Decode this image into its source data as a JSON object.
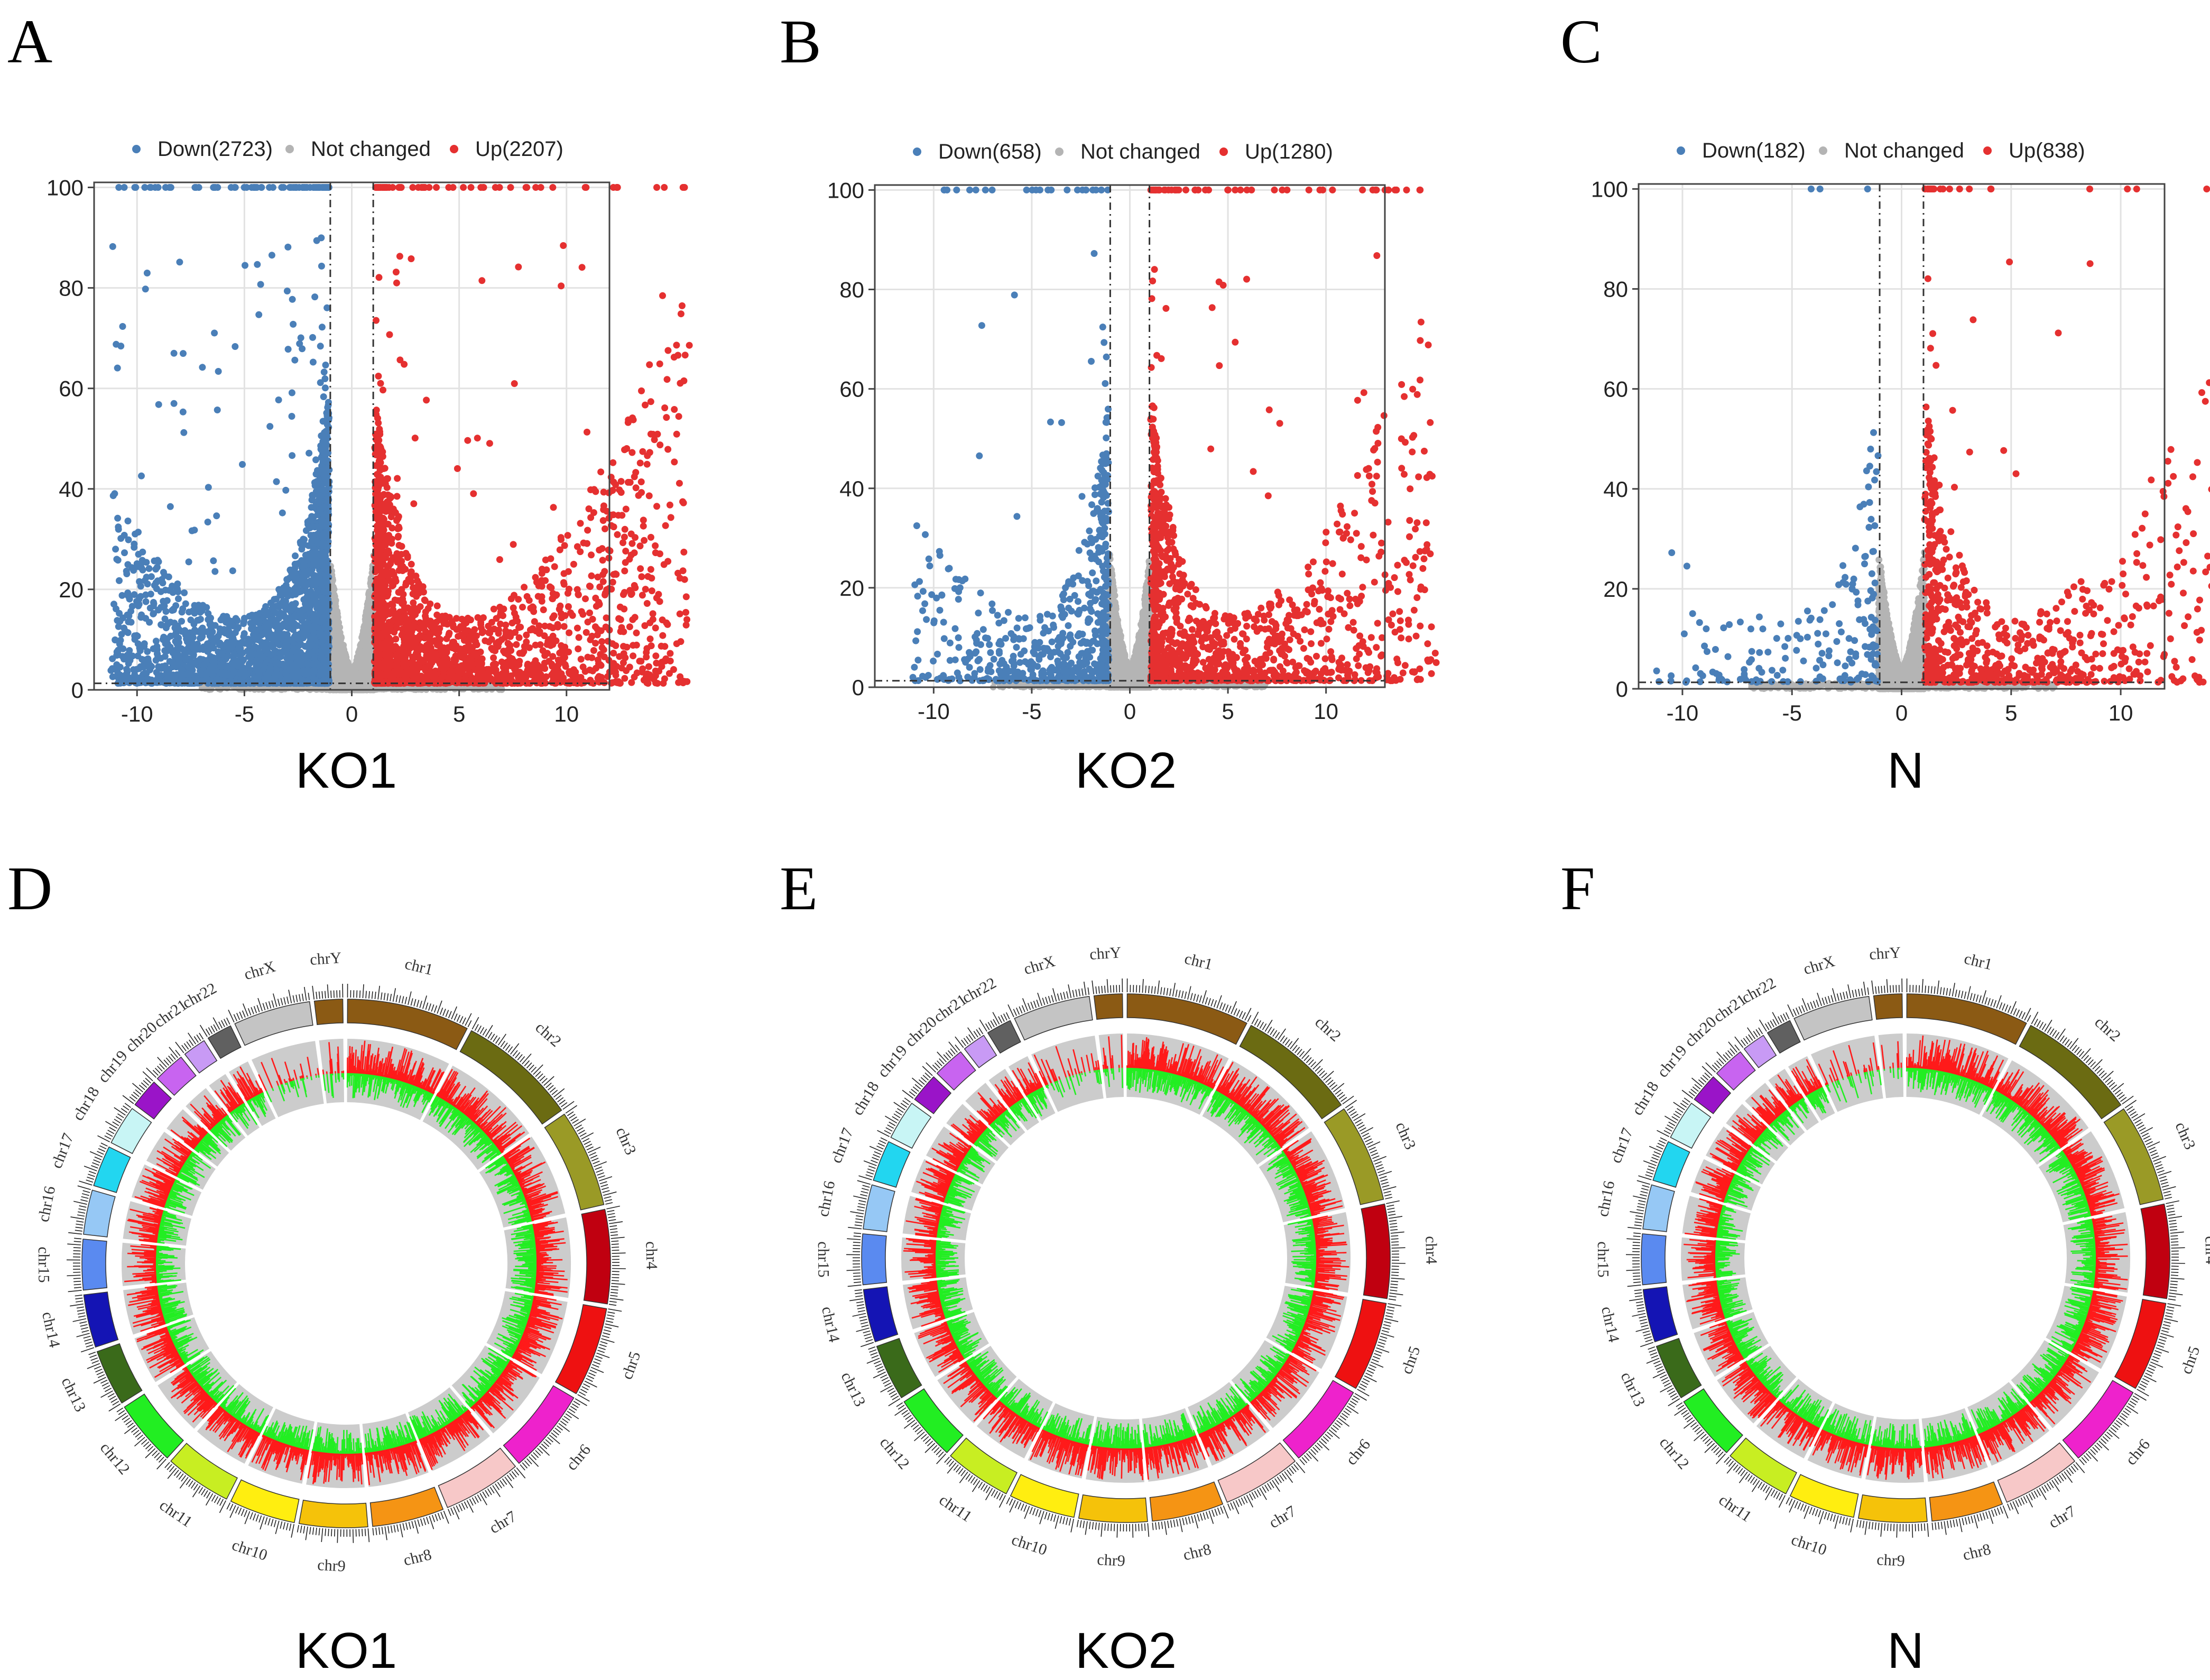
{
  "figure": {
    "panels": [
      "A",
      "B",
      "C",
      "D",
      "E",
      "F"
    ]
  },
  "chart_data": [
    {
      "panel": "A",
      "type": "scatter",
      "subtitle": "KO1",
      "legend": [
        {
          "label": "Down(2723)",
          "color": "#4a7fb8"
        },
        {
          "label": "Not changed",
          "color": "#b4b4b4"
        },
        {
          "label": "Up(2207)",
          "color": "#e53030"
        }
      ],
      "xticks": [
        -10,
        -5,
        0,
        5,
        10
      ],
      "yticks": [
        0,
        20,
        40,
        60,
        80,
        100
      ],
      "xlim": [
        -12,
        12
      ],
      "ylim": [
        0,
        101
      ],
      "fc": 1,
      "ref_y": 1.3,
      "seed": 11,
      "down": 2723,
      "up": 2207,
      "grey": 2200
    },
    {
      "panel": "B",
      "type": "scatter",
      "subtitle": "KO2",
      "legend": [
        {
          "label": "Down(658)",
          "color": "#4a7fb8"
        },
        {
          "label": "Not changed",
          "color": "#b4b4b4"
        },
        {
          "label": "Up(1280)",
          "color": "#e53030"
        }
      ],
      "xticks": [
        -10,
        -5,
        0,
        5,
        10
      ],
      "yticks": [
        0,
        20,
        40,
        60,
        80,
        100
      ],
      "xlim": [
        -13,
        13
      ],
      "ylim": [
        0,
        101
      ],
      "fc": 1,
      "ref_y": 1.3,
      "seed": 23,
      "down": 658,
      "up": 1280,
      "grey": 2200
    },
    {
      "panel": "C",
      "type": "scatter",
      "subtitle": "N",
      "legend": [
        {
          "label": "Down(182)",
          "color": "#4a7fb8"
        },
        {
          "label": "Not changed",
          "color": "#b4b4b4"
        },
        {
          "label": "Up(838)",
          "color": "#e53030"
        }
      ],
      "xticks": [
        -10,
        -5,
        0,
        5,
        10
      ],
      "yticks": [
        0,
        20,
        40,
        60,
        80,
        100
      ],
      "xlim": [
        -12,
        12
      ],
      "ylim": [
        0,
        101
      ],
      "fc": 1,
      "ref_y": 1.3,
      "seed": 37,
      "down": 182,
      "up": 838,
      "grey": 2200
    },
    {
      "panel": "D",
      "type": "circos",
      "subtitle": "KO1",
      "seed": 5,
      "track_colors": {
        "up": "#ff1a1a",
        "down": "#22ee22",
        "background": "#cccccc"
      }
    },
    {
      "panel": "E",
      "type": "circos",
      "subtitle": "KO2",
      "seed": 9,
      "track_colors": {
        "up": "#ff1a1a",
        "down": "#22ee22",
        "background": "#cccccc"
      }
    },
    {
      "panel": "F",
      "type": "circos",
      "subtitle": "N",
      "seed": 13,
      "track_colors": {
        "up": "#ff1a1a",
        "down": "#22ee22",
        "background": "#cccccc"
      }
    }
  ],
  "chromosomes": [
    {
      "name": "chr1",
      "length": 248,
      "color": "#8b5a14"
    },
    {
      "name": "chr2",
      "length": 242,
      "color": "#6b6b12"
    },
    {
      "name": "chr3",
      "length": 198,
      "color": "#9a9a26"
    },
    {
      "name": "chr4",
      "length": 190,
      "color": "#c00010"
    },
    {
      "name": "chr5",
      "length": 181,
      "color": "#ee1111"
    },
    {
      "name": "chr6",
      "length": 171,
      "color": "#ee22cc"
    },
    {
      "name": "chr7",
      "length": 159,
      "color": "#f7c8c8"
    },
    {
      "name": "chr8",
      "length": 145,
      "color": "#f59414"
    },
    {
      "name": "chr9",
      "length": 138,
      "color": "#f5c20a"
    },
    {
      "name": "chr10",
      "length": 134,
      "color": "#ffee10"
    },
    {
      "name": "chr11",
      "length": 135,
      "color": "#c8ee22"
    },
    {
      "name": "chr12",
      "length": 133,
      "color": "#22ee22"
    },
    {
      "name": "chr13",
      "length": 114,
      "color": "#3a6a1a"
    },
    {
      "name": "chr14",
      "length": 107,
      "color": "#1414b4"
    },
    {
      "name": "chr15",
      "length": 102,
      "color": "#5a8af0"
    },
    {
      "name": "chr16",
      "length": 90,
      "color": "#96c8f5"
    },
    {
      "name": "chr17",
      "length": 83,
      "color": "#22d6f0"
    },
    {
      "name": "chr18",
      "length": 80,
      "color": "#c8f5f5"
    },
    {
      "name": "chr19",
      "length": 59,
      "color": "#9a14c8"
    },
    {
      "name": "chr20",
      "length": 64,
      "color": "#c864f0"
    },
    {
      "name": "chr21",
      "length": 47,
      "color": "#c89af5"
    },
    {
      "name": "chr22",
      "length": 51,
      "color": "#606060"
    },
    {
      "name": "chrX",
      "length": 156,
      "color": "#c4c4c4"
    },
    {
      "name": "chrY",
      "length": 57,
      "color": "#8b5a14"
    }
  ]
}
